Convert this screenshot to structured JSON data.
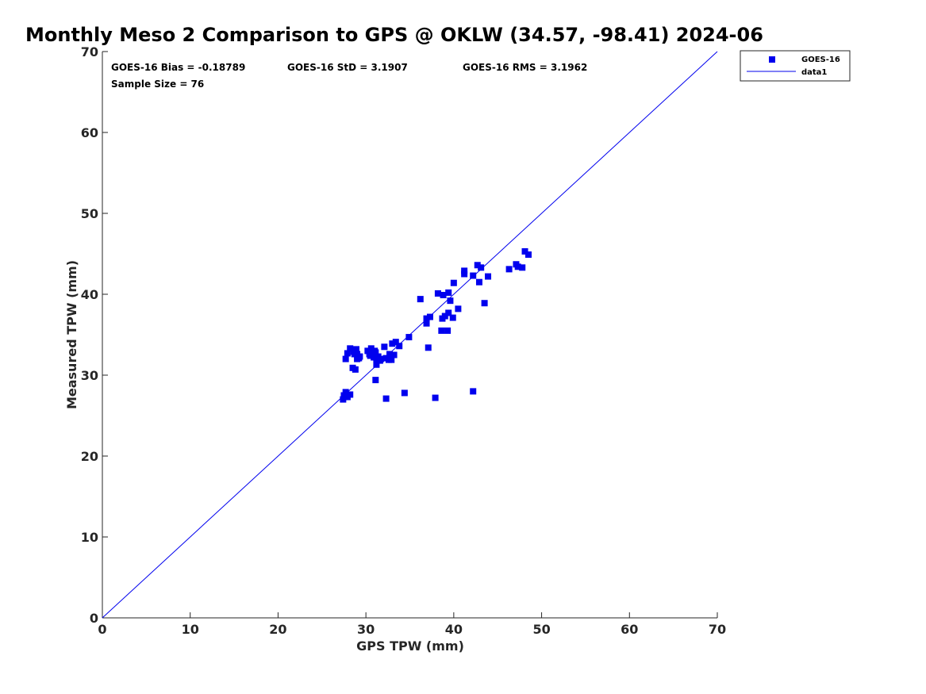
{
  "chart_data": {
    "type": "scatter",
    "title": "Monthly Meso 2 Comparison to GPS @ OKLW (34.57, -98.41) 2024-06",
    "xlabel": "GPS TPW (mm)",
    "ylabel": "Measured TPW (mm)",
    "xlim": [
      0,
      70
    ],
    "ylim": [
      0,
      70
    ],
    "xticks": [
      "0",
      "10",
      "20",
      "30",
      "40",
      "50",
      "60",
      "70"
    ],
    "yticks": [
      "0",
      "10",
      "20",
      "30",
      "40",
      "50",
      "60",
      "70"
    ],
    "grid": false,
    "legend_position": "top-right",
    "colors": {
      "series": "#0000ee",
      "line": "#0000ee",
      "axis": "#262626"
    },
    "stats": {
      "bias": "GOES-16 Bias = -0.18789",
      "std": "GOES-16 StD = 3.1907",
      "rms": "GOES-16 RMS = 3.1962",
      "sample": "Sample Size = 76"
    },
    "series": [
      {
        "name": "GOES-16",
        "marker": "square",
        "points": [
          [
            27.4,
            27.0
          ],
          [
            27.5,
            27.5
          ],
          [
            27.7,
            27.9
          ],
          [
            27.9,
            27.3
          ],
          [
            28.2,
            27.6
          ],
          [
            27.7,
            32.0
          ],
          [
            27.9,
            32.7
          ],
          [
            28.2,
            33.3
          ],
          [
            28.5,
            30.9
          ],
          [
            28.6,
            32.9
          ],
          [
            28.8,
            30.7
          ],
          [
            28.9,
            33.2
          ],
          [
            29.0,
            32.6
          ],
          [
            29.2,
            32.1
          ],
          [
            29.3,
            32.3
          ],
          [
            30.2,
            33.0
          ],
          [
            30.4,
            32.6
          ],
          [
            30.6,
            33.3
          ],
          [
            30.8,
            32.5
          ],
          [
            31.0,
            33.0
          ],
          [
            31.1,
            32.8
          ],
          [
            31.2,
            32.0
          ],
          [
            31.2,
            31.3
          ],
          [
            31.4,
            32.3
          ],
          [
            31.7,
            32.0
          ],
          [
            32.1,
            33.5
          ],
          [
            32.3,
            32.1
          ],
          [
            32.6,
            31.9
          ],
          [
            32.7,
            32.6
          ],
          [
            33.0,
            33.9
          ],
          [
            33.2,
            32.5
          ],
          [
            33.4,
            34.1
          ],
          [
            33.8,
            33.6
          ],
          [
            31.1,
            29.4
          ],
          [
            32.3,
            27.1
          ],
          [
            34.4,
            27.8
          ],
          [
            34.9,
            34.7
          ],
          [
            36.2,
            39.4
          ],
          [
            36.9,
            36.4
          ],
          [
            37.1,
            33.4
          ],
          [
            37.3,
            37.2
          ],
          [
            38.2,
            40.1
          ],
          [
            38.6,
            35.5
          ],
          [
            38.7,
            37.0
          ],
          [
            38.8,
            39.9
          ],
          [
            39.0,
            37.3
          ],
          [
            39.3,
            35.5
          ],
          [
            39.4,
            37.7
          ],
          [
            39.4,
            40.2
          ],
          [
            39.6,
            39.2
          ],
          [
            39.9,
            37.1
          ],
          [
            40.0,
            41.4
          ],
          [
            40.5,
            38.2
          ],
          [
            41.2,
            42.5
          ],
          [
            41.2,
            42.9
          ],
          [
            42.2,
            42.3
          ],
          [
            42.7,
            43.6
          ],
          [
            42.9,
            41.5
          ],
          [
            43.1,
            43.3
          ],
          [
            43.5,
            38.9
          ],
          [
            43.9,
            42.2
          ],
          [
            37.9,
            27.2
          ],
          [
            42.2,
            28.0
          ],
          [
            46.3,
            43.1
          ],
          [
            47.1,
            43.7
          ],
          [
            47.3,
            43.4
          ],
          [
            47.8,
            43.3
          ],
          [
            48.1,
            45.3
          ],
          [
            48.5,
            44.9
          ],
          [
            30.5,
            32.4
          ],
          [
            29.0,
            32.0
          ],
          [
            31.6,
            31.8
          ],
          [
            32.9,
            31.9
          ],
          [
            30.9,
            32.2
          ],
          [
            28.7,
            32.6
          ],
          [
            36.9,
            37.0
          ]
        ]
      },
      {
        "name": "data1",
        "marker": "line",
        "points": [
          [
            0,
            0
          ],
          [
            70,
            70
          ]
        ]
      }
    ]
  }
}
